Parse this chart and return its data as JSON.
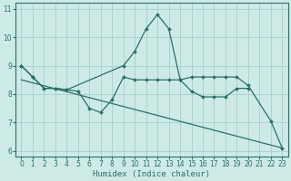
{
  "bg_color": "#ceeae6",
  "grid_color": "#a8d4cf",
  "line_color": "#2a6f68",
  "xlabel": "Humidex (Indice chaleur)",
  "xlim": [
    -0.5,
    23.5
  ],
  "ylim": [
    5.8,
    11.2
  ],
  "xticks": [
    0,
    1,
    2,
    3,
    4,
    5,
    6,
    7,
    8,
    9,
    10,
    11,
    12,
    13,
    14,
    15,
    16,
    17,
    18,
    19,
    20,
    21,
    22,
    23
  ],
  "yticks": [
    6,
    7,
    8,
    9,
    10,
    11
  ],
  "line1_x": [
    0,
    1,
    2,
    3,
    4,
    5,
    6,
    7,
    8,
    9,
    10,
    11,
    12,
    13,
    14,
    15,
    16,
    17,
    18,
    19,
    20,
    21,
    22,
    23
  ],
  "line1_y": [
    9.0,
    8.6,
    8.2,
    8.2,
    8.15,
    8.1,
    7.5,
    7.35,
    7.8,
    8.6,
    8.5,
    8.5,
    8.5,
    8.5,
    8.5,
    8.1,
    7.9,
    7.9,
    7.9,
    8.2,
    8.2,
    null,
    null,
    null
  ],
  "line2_x": [
    0,
    1,
    2,
    3,
    4,
    9,
    10,
    11,
    12,
    13,
    14,
    15,
    16,
    17,
    18,
    19,
    20,
    22,
    23
  ],
  "line2_y": [
    9.0,
    8.6,
    8.2,
    8.2,
    8.15,
    9.0,
    9.5,
    10.3,
    10.8,
    10.3,
    8.5,
    8.6,
    8.6,
    8.6,
    8.6,
    8.6,
    8.3,
    7.05,
    6.1
  ],
  "line3_x": [
    0,
    23
  ],
  "line3_y": [
    8.5,
    6.1
  ]
}
